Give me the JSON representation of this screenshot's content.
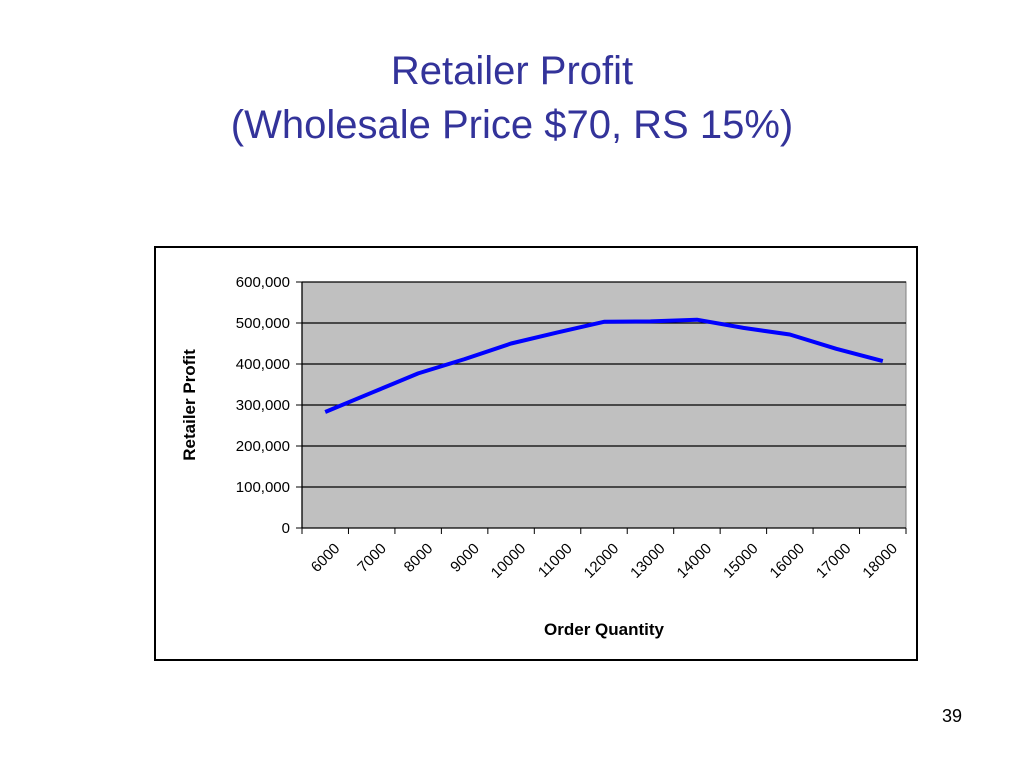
{
  "slide": {
    "title_line1": "Retailer Profit",
    "title_line2": "(Wholesale Price $70, RS 15%)",
    "page_number": "39"
  },
  "colors": {
    "title": "#33339a",
    "line": "#0000ff",
    "plot_background": "#c0c0c0",
    "gridline": "#000000"
  },
  "chart_data": {
    "type": "line",
    "title": "",
    "xlabel": "Order Quantity",
    "ylabel": "Retailer Profit",
    "categories": [
      "6000",
      "7000",
      "8000",
      "9000",
      "10000",
      "11000",
      "12000",
      "13000",
      "14000",
      "15000",
      "16000",
      "17000",
      "18000"
    ],
    "yticks": [
      "0",
      "100,000",
      "200,000",
      "300,000",
      "400,000",
      "500,000",
      "600,000"
    ],
    "ylim": [
      0,
      600000
    ],
    "grid": "horizontal",
    "legend": "none",
    "series": [
      {
        "values": [
          283000,
          330000,
          377000,
          412000,
          450000,
          477000,
          503000,
          504000,
          508000,
          488000,
          472000,
          437000,
          407000
        ]
      }
    ]
  }
}
